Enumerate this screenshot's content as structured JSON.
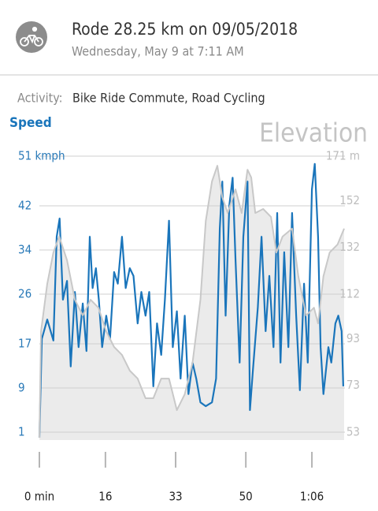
{
  "header": {
    "title": "Rode 28.25 km on 09/05/2018",
    "subtitle": "Wednesday, May 9 at 7:11 AM"
  },
  "activity": {
    "label": "Activity:",
    "value": "Bike Ride Commute, Road Cycling"
  },
  "chart_data": {
    "type": "line",
    "series": [
      {
        "name": "Speed",
        "color": "#1a75bb",
        "x": [
          0,
          0.6,
          1.9,
          3.4,
          4.2,
          4.9,
          5.7,
          6.7,
          7.6,
          8.6,
          9.5,
          10.5,
          11.4,
          12.2,
          12.9,
          13.7,
          14.4,
          15.2,
          16.2,
          17.1,
          18.1,
          19,
          20,
          20.9,
          21.9,
          22.8,
          23.8,
          24.7,
          25.7,
          26.6,
          27.6,
          28.5,
          29.5,
          30.4,
          31.4,
          32.3,
          33.3,
          34.2,
          35.2,
          36.1,
          37.1,
          38,
          39,
          40.3,
          41.8,
          42.8,
          43.7,
          44.3,
          45.1,
          46,
          46.8,
          47.5,
          48.5,
          49.4,
          50.4,
          51,
          51.7,
          52.9,
          53.8,
          54.8,
          55.7,
          56.7,
          57.6,
          58.4,
          59.3,
          60.3,
          61.2,
          62.2,
          63.1,
          64.1,
          65,
          66,
          66.7,
          67.5,
          68.1,
          68.8,
          70,
          70.7,
          71.7,
          72.4,
          73.2,
          73.6
        ],
        "values": [
          0,
          17.9,
          21.4,
          17.6,
          36.4,
          39.7,
          25,
          28.4,
          12.9,
          26.4,
          16.4,
          24.3,
          15.7,
          36.4,
          27.1,
          30.7,
          25,
          16.4,
          22.1,
          17.9,
          30,
          27.9,
          36.4,
          27.1,
          30.7,
          29.3,
          20.7,
          26.4,
          22.1,
          26.4,
          9.3,
          20.7,
          15,
          25,
          39.3,
          16.4,
          22.9,
          10.7,
          22.1,
          7.9,
          13.6,
          10.7,
          6.4,
          5.7,
          6.4,
          10.7,
          37.9,
          46.4,
          22.1,
          42.1,
          47.1,
          32.1,
          13.6,
          36.4,
          46.4,
          5,
          12.1,
          23.6,
          36.4,
          19.3,
          29.3,
          16.4,
          40.7,
          13.6,
          33.6,
          16.4,
          40.7,
          22.1,
          8.6,
          27.9,
          13.6,
          45,
          49.6,
          36.4,
          16.4,
          7.9,
          16.4,
          13.6,
          20.7,
          22.1,
          19.3,
          9.3
        ]
      },
      {
        "name": "Elevation",
        "color": "#c8c8c8",
        "axis": "y2",
        "x": [
          0,
          0.4,
          1.9,
          3.4,
          4.8,
          6.7,
          8.6,
          10.5,
          12.4,
          14.3,
          16.2,
          18.1,
          20,
          21.9,
          23.8,
          25.7,
          27.6,
          29.5,
          31.4,
          33.3,
          35.2,
          37.1,
          39,
          40.3,
          41.8,
          43.1,
          44.3,
          45.6,
          47.5,
          49,
          50.4,
          51.3,
          52.3,
          54.2,
          56.1,
          57.4,
          58.9,
          61.2,
          62.7,
          64.6,
          66.5,
          67.5,
          68.8,
          70.3,
          72.2,
          73.8
        ],
        "values": [
          50.6,
          96.1,
          116.4,
          129.8,
          136.6,
          126.5,
          109.6,
          102.9,
          109.6,
          106.2,
          96.1,
          89.4,
          86,
          79.3,
          75.9,
          67.5,
          67.5,
          75.9,
          75.9,
          62.4,
          69.2,
          82.7,
          109.6,
          143.3,
          160.2,
          166.9,
          153.4,
          146.7,
          156.8,
          146.7,
          165.2,
          161.9,
          146.7,
          148.4,
          145,
          129.8,
          136.6,
          140,
          119.7,
          102.9,
          106.2,
          99.5,
          119.7,
          129.8,
          133.2,
          140
        ]
      }
    ],
    "xlim": [
      0,
      74
    ],
    "xticks": [
      {
        "value": 0,
        "label": "0 min"
      },
      16,
      33,
      50,
      {
        "value": 66,
        "label": "1:06"
      }
    ],
    "ylim": [
      1,
      51
    ],
    "yticks": [
      {
        "value": 51,
        "label": "51 kmph"
      },
      42,
      34,
      26,
      17,
      9,
      1
    ],
    "y2lim": [
      53,
      171
    ],
    "y2ticks": [
      {
        "value": 171,
        "label": "171 m"
      },
      152,
      132,
      112,
      93,
      73,
      53
    ],
    "grid": true
  }
}
